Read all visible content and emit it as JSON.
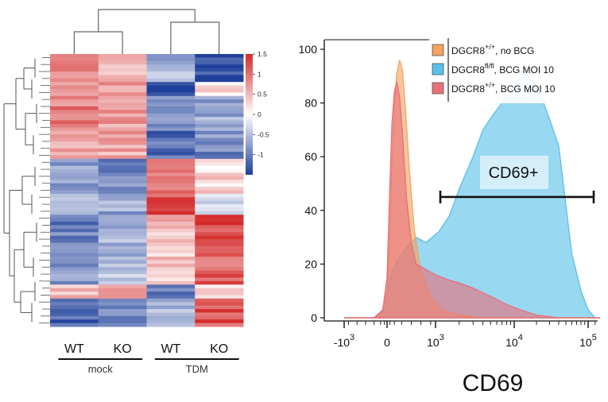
{
  "chart_data": [
    {
      "type": "heatmap",
      "columns": [
        "WT",
        "KO",
        "WT",
        "KO"
      ],
      "groups": [
        {
          "label": "mock",
          "columns": [
            0,
            1
          ]
        },
        {
          "label": "TDM",
          "columns": [
            2,
            3
          ]
        }
      ],
      "colorbar": {
        "ticks": [
          1.5,
          1,
          0.5,
          0,
          -0.5,
          -1
        ],
        "tick_labels": [
          "1.5",
          "1",
          "0.5",
          "0",
          "-0.5",
          "-1"
        ],
        "low_color": "#1f3f9a",
        "mid_color": "#ffffff",
        "high_color": "#d42a2a",
        "range": [
          -1.5,
          1.5
        ]
      },
      "blocks": [
        {
          "rows": 8,
          "values": [
            0.9,
            0.6,
            -0.6,
            -1.4
          ]
        },
        {
          "rows": 4,
          "values": [
            0.8,
            0.6,
            -1.3,
            0.2
          ]
        },
        {
          "rows": 10,
          "values": [
            0.9,
            0.7,
            -0.9,
            -0.7
          ]
        },
        {
          "rows": 8,
          "values": [
            0.7,
            0.6,
            -1.1,
            -0.9
          ]
        },
        {
          "rows": 10,
          "values": [
            -0.7,
            -0.9,
            1.1,
            0.3
          ]
        },
        {
          "rows": 6,
          "values": [
            -0.5,
            -0.7,
            1.2,
            -0.4
          ]
        },
        {
          "rows": 10,
          "values": [
            -1.0,
            -0.6,
            0.5,
            1.3
          ]
        },
        {
          "rows": 10,
          "values": [
            -0.8,
            -0.5,
            0.4,
            1.1
          ]
        },
        {
          "rows": 4,
          "values": [
            0.4,
            0.7,
            -1.0,
            0.3
          ]
        },
        {
          "rows": 8,
          "values": [
            -1.2,
            -1.0,
            -0.5,
            1.2
          ]
        }
      ],
      "dendrogram": {
        "top": true,
        "left": true
      }
    },
    {
      "type": "area",
      "subtype": "flow-cytometry histogram",
      "xlabel": "CD69",
      "ylabel": "",
      "x_scale": "biexponential",
      "ylim": [
        0,
        100
      ],
      "yticks": [
        0,
        20,
        40,
        60,
        80,
        100
      ],
      "xticks": [
        {
          "value": -1000,
          "base": "-10",
          "exp": "3"
        },
        {
          "value": 0,
          "base": "0",
          "exp": ""
        },
        {
          "value": 1000,
          "base": "10",
          "exp": "3"
        },
        {
          "value": 10000,
          "base": "10",
          "exp": "4"
        },
        {
          "value": 100000,
          "base": "10",
          "exp": "5"
        }
      ],
      "gate": {
        "label": "CD69+",
        "x_range": [
          1000,
          200000
        ],
        "y": 45
      },
      "series": [
        {
          "name_base": "DGCR8",
          "name_sup": "+/+",
          "name_rest": ",  no BCG",
          "color": "#f4a460",
          "points": [
            [
              -1000,
              0
            ],
            [
              -300,
              0
            ],
            [
              -100,
              2
            ],
            [
              0,
              10
            ],
            [
              50,
              28
            ],
            [
              100,
              58
            ],
            [
              150,
              78
            ],
            [
              200,
              91
            ],
            [
              260,
              96
            ],
            [
              320,
              92
            ],
            [
              380,
              78
            ],
            [
              460,
              55
            ],
            [
              560,
              33
            ],
            [
              700,
              17
            ],
            [
              900,
              8
            ],
            [
              1200,
              3
            ],
            [
              2000,
              1
            ],
            [
              4000,
              0
            ],
            [
              200000,
              0
            ]
          ]
        },
        {
          "name_base": "DGCR8",
          "name_sup": "fl/fl",
          "name_rest": ", BCG MOI 10",
          "color": "#5bc0e8",
          "points": [
            [
              -1000,
              0
            ],
            [
              -300,
              0
            ],
            [
              -100,
              3
            ],
            [
              0,
              10
            ],
            [
              100,
              17
            ],
            [
              200,
              21
            ],
            [
              400,
              26
            ],
            [
              600,
              30
            ],
            [
              800,
              28
            ],
            [
              1100,
              32
            ],
            [
              1500,
              38
            ],
            [
              2000,
              48
            ],
            [
              3000,
              60
            ],
            [
              4000,
              70
            ],
            [
              5500,
              76
            ],
            [
              7000,
              80
            ],
            [
              9000,
              84
            ],
            [
              11000,
              88
            ],
            [
              13000,
              94
            ],
            [
              16000,
              90
            ],
            [
              20000,
              86
            ],
            [
              25000,
              80
            ],
            [
              30000,
              74
            ],
            [
              40000,
              64
            ],
            [
              50000,
              42
            ],
            [
              60000,
              24
            ],
            [
              80000,
              10
            ],
            [
              100000,
              3
            ],
            [
              150000,
              0
            ],
            [
              200000,
              0
            ]
          ]
        },
        {
          "name_base": "DGCR8",
          "name_sup": "+/+",
          "name_rest": ", BCG MOI 10",
          "color": "#e8707a",
          "points": [
            [
              -1000,
              0
            ],
            [
              -300,
              0
            ],
            [
              -100,
              3
            ],
            [
              0,
              15
            ],
            [
              50,
              45
            ],
            [
              100,
              72
            ],
            [
              150,
              84
            ],
            [
              200,
              88
            ],
            [
              260,
              82
            ],
            [
              320,
              68
            ],
            [
              400,
              45
            ],
            [
              500,
              28
            ],
            [
              600,
              20
            ],
            [
              800,
              18
            ],
            [
              1000,
              16
            ],
            [
              1500,
              14
            ],
            [
              2000,
              13
            ],
            [
              3000,
              11
            ],
            [
              5000,
              8
            ],
            [
              8000,
              5
            ],
            [
              12000,
              3
            ],
            [
              20000,
              1
            ],
            [
              40000,
              0
            ],
            [
              200000,
              0
            ]
          ]
        }
      ]
    }
  ]
}
